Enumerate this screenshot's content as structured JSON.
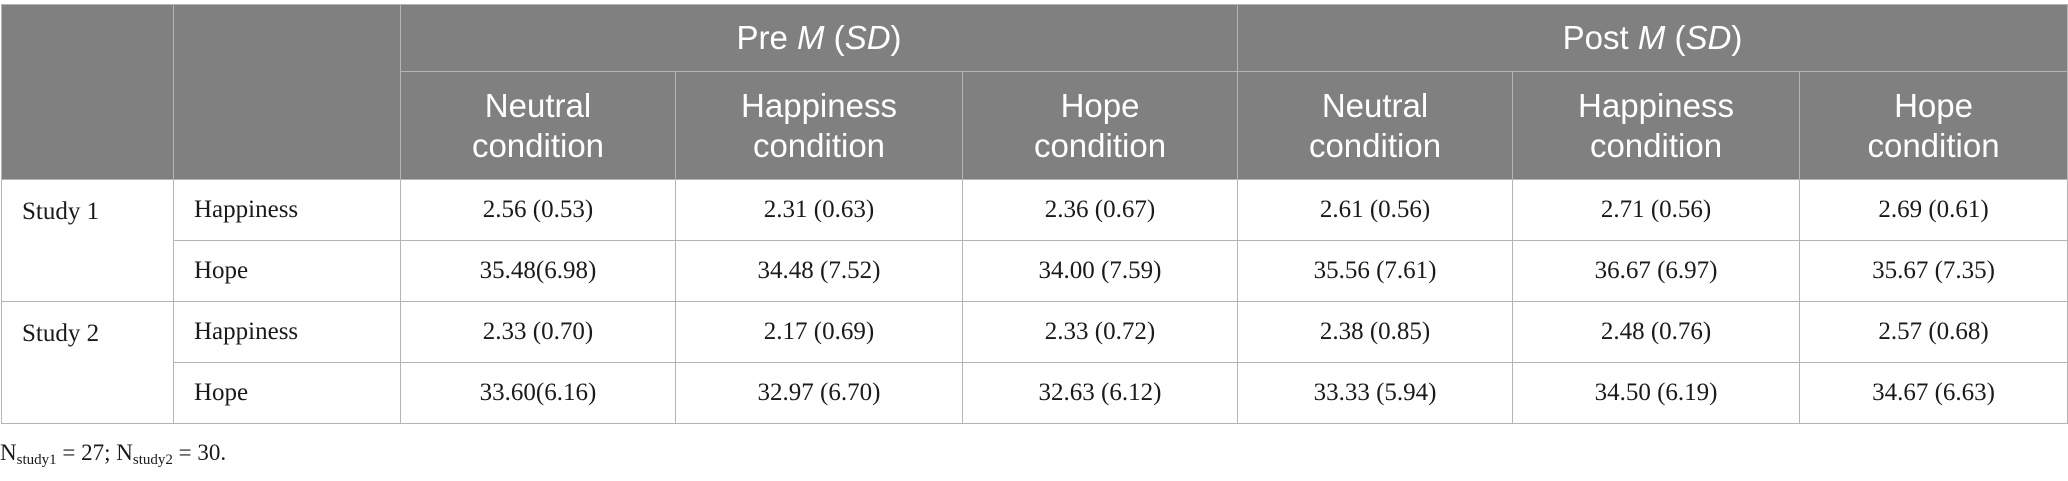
{
  "header": {
    "groups": [
      {
        "prefix": "Pre ",
        "m": "M",
        "open": " (",
        "sd": "SD",
        "close": ")"
      },
      {
        "prefix": "Post ",
        "m": "M",
        "open": " (",
        "sd": "SD",
        "close": ")"
      }
    ],
    "conditions": [
      {
        "line1": "Neutral",
        "line2": "condition"
      },
      {
        "line1": "Happiness",
        "line2": "condition"
      },
      {
        "line1": "Hope",
        "line2": "condition"
      },
      {
        "line1": "Neutral",
        "line2": "condition"
      },
      {
        "line1": "Happiness",
        "line2": "condition"
      },
      {
        "line1": "Hope",
        "line2": "condition"
      }
    ]
  },
  "studies": [
    {
      "label": "Study 1",
      "rows": [
        {
          "measure": "Happiness",
          "values": [
            "2.56 (0.53)",
            "2.31 (0.63)",
            "2.36 (0.67)",
            "2.61 (0.56)",
            "2.71 (0.56)",
            "2.69 (0.61)"
          ]
        },
        {
          "measure": "Hope",
          "values": [
            "35.48(6.98)",
            "34.48 (7.52)",
            "34.00 (7.59)",
            "35.56 (7.61)",
            "36.67 (6.97)",
            "35.67 (7.35)"
          ]
        }
      ]
    },
    {
      "label": "Study 2",
      "rows": [
        {
          "measure": "Happiness",
          "values": [
            "2.33 (0.70)",
            "2.17 (0.69)",
            "2.33 (0.72)",
            "2.38 (0.85)",
            "2.48 (0.76)",
            "2.57 (0.68)"
          ]
        },
        {
          "measure": "Hope",
          "values": [
            "33.60(6.16)",
            "32.97 (6.70)",
            "32.63 (6.12)",
            "33.33 (5.94)",
            "34.50 (6.19)",
            "34.67 (6.63)"
          ]
        }
      ]
    }
  ],
  "note": {
    "n1_label": "N",
    "n1_sub": "study1",
    "n1_value": " = 27; ",
    "n2_label": "N",
    "n2_sub": "study2",
    "n2_value": " = 30."
  }
}
